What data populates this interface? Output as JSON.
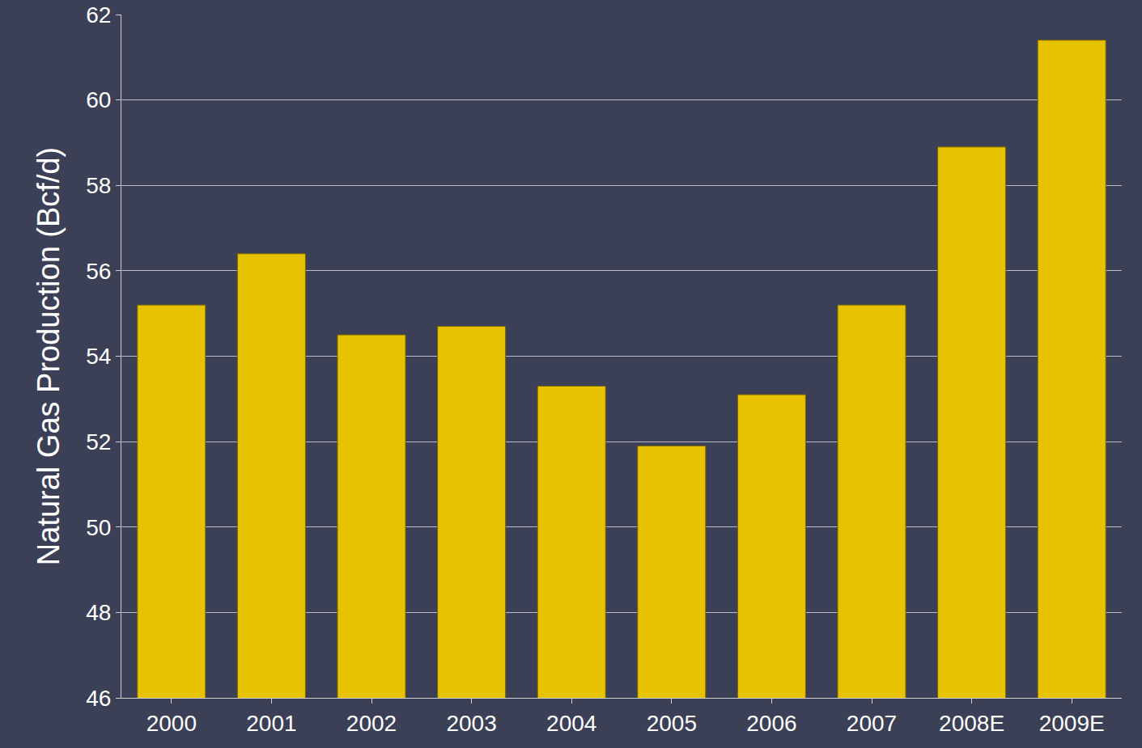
{
  "chart_data": {
    "type": "bar",
    "y_label": "Natural Gas Production (Bcf/d)",
    "categories": [
      "2000",
      "2001",
      "2002",
      "2003",
      "2004",
      "2005",
      "2006",
      "2007",
      "2008E",
      "2009E"
    ],
    "values": [
      55.2,
      56.4,
      54.5,
      54.7,
      53.3,
      51.9,
      53.1,
      55.2,
      58.9,
      61.4
    ],
    "color": "#e6c200",
    "ylim": [
      46,
      62
    ],
    "yticks": [
      46,
      48,
      50,
      52,
      54,
      56,
      58,
      60,
      62
    ],
    "grid": true
  }
}
